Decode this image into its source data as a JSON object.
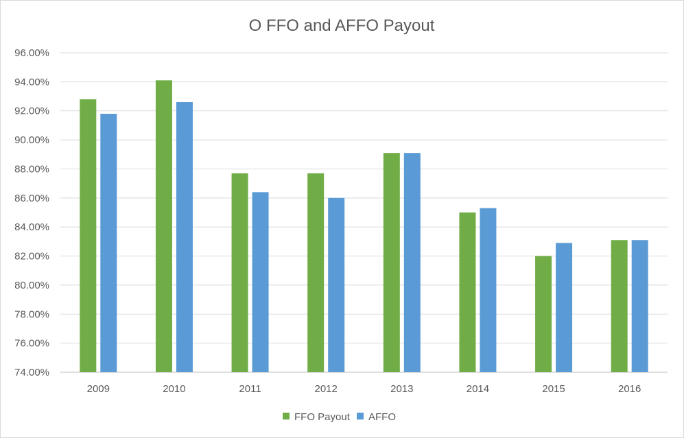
{
  "chart_data": {
    "type": "bar",
    "title": "O FFO and AFFO Payout",
    "xlabel": "",
    "ylabel": "",
    "categories": [
      "2009",
      "2010",
      "2011",
      "2012",
      "2013",
      "2014",
      "2015",
      "2016"
    ],
    "series": [
      {
        "name": "FFO Payout",
        "color": "#70ad47",
        "values": [
          92.8,
          94.1,
          87.7,
          87.7,
          89.1,
          85.0,
          82.0,
          83.1
        ]
      },
      {
        "name": "AFFO",
        "color": "#5b9bd5",
        "values": [
          91.8,
          92.6,
          86.4,
          86.0,
          89.1,
          85.3,
          82.9,
          83.1
        ]
      }
    ],
    "ylim": [
      74,
      96
    ],
    "y_ticks": [
      74,
      76,
      78,
      80,
      82,
      84,
      86,
      88,
      90,
      92,
      94,
      96
    ],
    "y_tick_labels": [
      "74.00%",
      "76.00%",
      "78.00%",
      "80.00%",
      "82.00%",
      "84.00%",
      "86.00%",
      "88.00%",
      "90.00%",
      "92.00%",
      "94.00%",
      "96.00%"
    ],
    "grid": true,
    "legend_position": "bottom",
    "gridline_color": "#d9d9d9",
    "axis_color": "#bfbfbf"
  }
}
